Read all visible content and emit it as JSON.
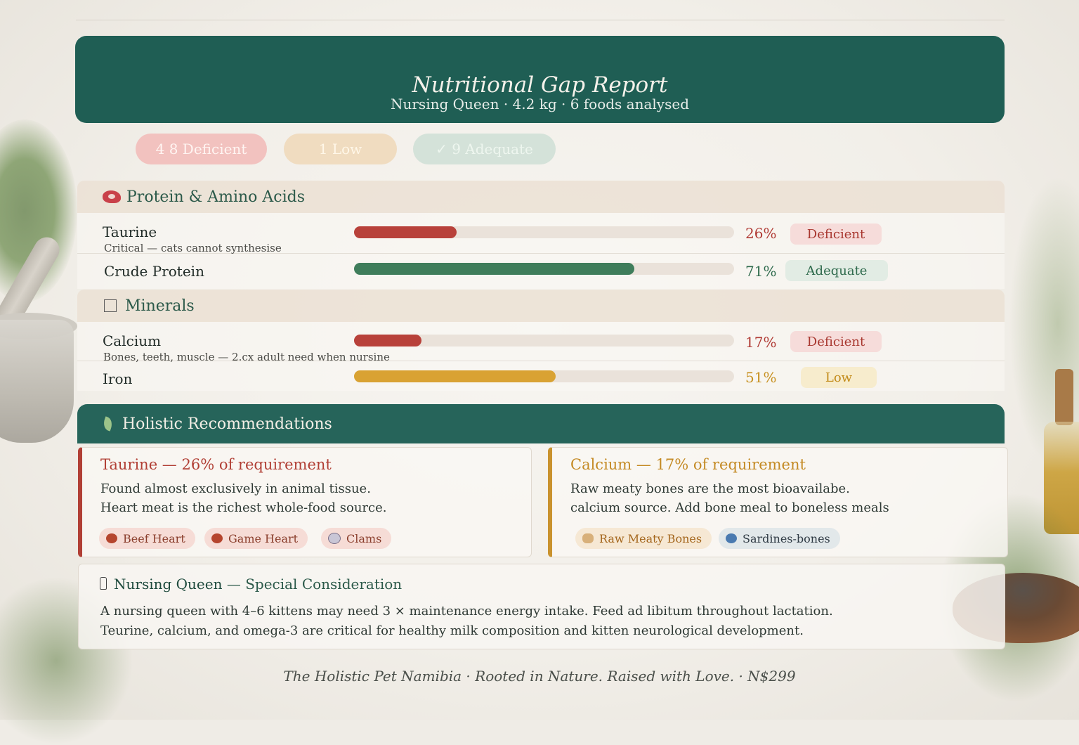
{
  "header": {
    "title": "Nutritional Gap Report",
    "subtitle": "Nursing Queen · 4.2 kg · 6 foods analysed"
  },
  "summary": {
    "deficient": "4 8 Deficient",
    "low": "1 Low",
    "adequate": "✓ 9 Adequate"
  },
  "sections": {
    "protein": {
      "title": "Protein & Amino Acids",
      "icon": "meat-icon",
      "items": [
        {
          "name": "Taurine",
          "note": "Critical — cats cannot synthesise",
          "percent": 26,
          "percent_label": "26%",
          "status": "Deficient",
          "color": "#b8413a"
        },
        {
          "name": "Crude Protein",
          "note": "",
          "percent": 71,
          "percent_label": "71%",
          "status": "Adequate",
          "color": "#3f7d5b"
        }
      ]
    },
    "minerals": {
      "title": "Minerals",
      "icon": "checkbox-icon",
      "items": [
        {
          "name": "Calcium",
          "note": "Bones, teeth, muscle — 2.cx adult need when nursine",
          "percent": 17,
          "percent_label": "17%",
          "status": "Deficient",
          "color": "#b8413a"
        },
        {
          "name": "Iron",
          "note": "",
          "percent": 51,
          "percent_label": "51%",
          "status": "Low",
          "color": "#d9a233"
        }
      ]
    }
  },
  "recommendations": {
    "title": "Holistic Recommendations",
    "cards": [
      {
        "heading": "Taurine — 26% of requirement",
        "lines": [
          "Found almost exclusively in animal tissue.",
          "Heart meat is the richest whole-food source."
        ],
        "chips": [
          "Beef Heart",
          "Game Heart",
          "Clams"
        ]
      },
      {
        "heading": "Calcium — 17% of requirement",
        "lines": [
          "Raw meaty bones are the most bioavailabe.",
          "calcium source. Add bone meal to boneless meals"
        ],
        "chips": [
          "Raw Meaty Bones",
          "Sardines-bones"
        ]
      }
    ]
  },
  "nursing": {
    "title_bold": "Nursing Queen",
    "title_rest": " — Special Consideration",
    "lines": [
      "A nursing queen with 4–6 kittens may need 3 × maintenance energy intake. Feed ad libitum throughout lactation.",
      "Teurine, calcium, and omega-3 are critical for healthy milk composition and kitten neurological development."
    ]
  },
  "footer": "The Holistic Pet Namibia · Rooted in Nature. Raised with Love. · N$299"
}
